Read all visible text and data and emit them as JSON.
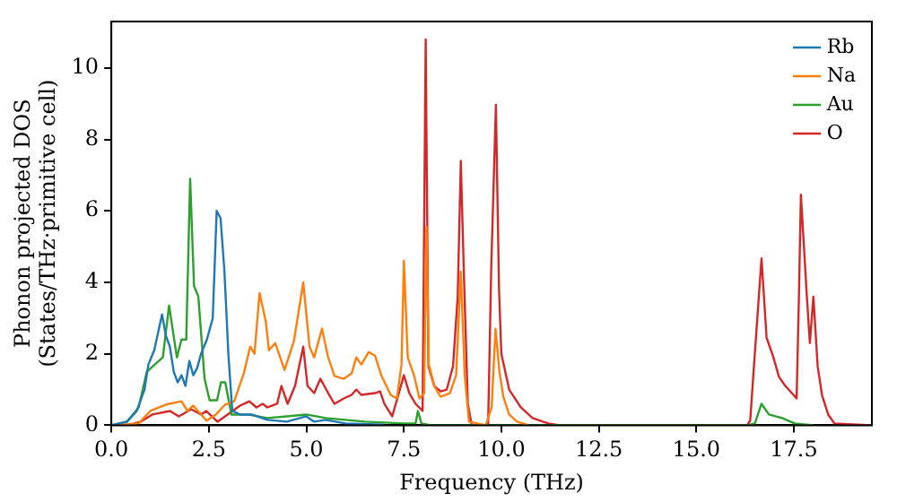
{
  "chart_data": {
    "type": "line",
    "xlabel": "Frequency (THz)",
    "ylabel": "Phonon projected DOS\n(States/THz·primitive cell)",
    "xlim": [
      0,
      19.5
    ],
    "xticks": [
      {
        "value": 0,
        "label": "0.0"
      },
      {
        "value": 2.5,
        "label": "2.5"
      },
      {
        "value": 5,
        "label": "5.0"
      },
      {
        "value": 7.5,
        "label": "7.5"
      },
      {
        "value": 10,
        "label": "10.0"
      },
      {
        "value": 12.5,
        "label": "12.5"
      },
      {
        "value": 15,
        "label": "15.0"
      },
      {
        "value": 17.5,
        "label": "17.5"
      }
    ],
    "ylim": [
      0,
      11.3
    ],
    "yticks": [
      0,
      2,
      4,
      6,
      8,
      10
    ],
    "grid": false,
    "legend": "top right",
    "marker": "none",
    "line_style": "solid",
    "series": [
      {
        "name": "Rb",
        "color": "#1f77b4",
        "x": [
          0,
          0.4,
          0.65,
          0.85,
          0.95,
          1.1,
          1.2,
          1.3,
          1.4,
          1.5,
          1.6,
          1.7,
          1.8,
          1.9,
          2.0,
          2.1,
          2.2,
          2.3,
          2.45,
          2.6,
          2.7,
          2.8,
          2.9,
          3.0,
          3.1,
          3.3,
          3.6,
          4.0,
          4.5,
          5.0,
          5.2,
          5.5,
          6.0,
          7.0
        ],
        "values": [
          0,
          0.1,
          0.4,
          1.0,
          1.7,
          2.1,
          2.6,
          3.1,
          2.5,
          2.2,
          1.5,
          1.2,
          1.4,
          1.1,
          1.8,
          1.4,
          1.6,
          2.0,
          2.4,
          3.0,
          6.0,
          5.8,
          4.3,
          2.0,
          0.4,
          0.3,
          0.3,
          0.15,
          0.1,
          0.25,
          0.1,
          0.15,
          0.05,
          0.02
        ]
      },
      {
        "name": "Na",
        "color": "#ff7f0e",
        "x": [
          0,
          0.7,
          1.0,
          1.4,
          1.8,
          1.95,
          2.1,
          2.44,
          2.68,
          2.92,
          3.15,
          3.4,
          3.56,
          3.67,
          3.8,
          3.96,
          4.04,
          4.2,
          4.44,
          4.68,
          4.92,
          5.08,
          5.2,
          5.4,
          5.56,
          5.72,
          5.96,
          6.16,
          6.28,
          6.41,
          6.6,
          6.76,
          6.92,
          7.16,
          7.32,
          7.44,
          7.5,
          7.6,
          7.76,
          7.9,
          8.02,
          8.08,
          8.14,
          8.28,
          8.44,
          8.68,
          8.84,
          8.96,
          9.06,
          9.17,
          9.6,
          9.75,
          9.85,
          9.95,
          10.05,
          10.2,
          10.4,
          10.7
        ],
        "values": [
          0,
          0.05,
          0.4,
          0.58,
          0.67,
          0.4,
          0.55,
          0.13,
          0.3,
          0.58,
          0.67,
          1.47,
          2.2,
          2.0,
          3.7,
          2.9,
          2.1,
          2.3,
          1.55,
          2.35,
          4.0,
          2.2,
          1.9,
          2.7,
          1.9,
          1.38,
          1.3,
          1.45,
          1.9,
          1.7,
          2.05,
          1.95,
          1.4,
          0.85,
          0.75,
          1.7,
          4.6,
          1.9,
          1.4,
          0.75,
          0.9,
          5.55,
          1.7,
          1.1,
          0.8,
          0.9,
          1.4,
          4.3,
          1.4,
          0.1,
          0,
          0.5,
          2.7,
          1.5,
          0.8,
          0.3,
          0.1,
          0
        ]
      },
      {
        "name": "Au",
        "color": "#2ca02c",
        "x": [
          0,
          0.4,
          0.7,
          0.91,
          1.32,
          1.48,
          1.68,
          1.8,
          1.92,
          2.02,
          2.12,
          2.23,
          2.39,
          2.52,
          2.71,
          2.81,
          2.92,
          3.08,
          3.5,
          4.0,
          5.0,
          5.5,
          6.5,
          7.5,
          7.8,
          7.86,
          7.95,
          8.2,
          16.3,
          16.5,
          16.67,
          16.86,
          17.2,
          17.52,
          18.0
        ],
        "values": [
          0,
          0.1,
          0.5,
          1.5,
          1.9,
          3.35,
          1.9,
          2.4,
          2.4,
          6.9,
          3.9,
          3.6,
          1.3,
          0.7,
          0.7,
          1.2,
          1.2,
          0.3,
          0.3,
          0.2,
          0.3,
          0.2,
          0.1,
          0.05,
          0.05,
          0.4,
          0.05,
          0,
          0,
          0.05,
          0.6,
          0.3,
          0.2,
          0.05,
          0
        ]
      },
      {
        "name": "O",
        "color": "#d62728",
        "x": [
          0,
          0.5,
          0.75,
          1.05,
          1.5,
          1.73,
          2.05,
          2.3,
          2.43,
          2.72,
          2.98,
          3.3,
          3.54,
          3.72,
          3.88,
          4.0,
          4.25,
          4.36,
          4.52,
          4.71,
          4.92,
          5.03,
          5.2,
          5.36,
          5.56,
          5.72,
          5.96,
          6.16,
          6.28,
          6.41,
          6.76,
          6.89,
          7.0,
          7.2,
          7.36,
          7.5,
          7.64,
          7.8,
          7.98,
          8.06,
          8.13,
          8.28,
          8.44,
          8.6,
          8.76,
          8.88,
          8.96,
          9.04,
          9.14,
          9.24,
          9.66,
          9.74,
          9.86,
          9.94,
          10.0,
          10.2,
          10.5,
          10.8,
          11.2,
          11.5,
          16.3,
          16.38,
          16.46,
          16.67,
          16.8,
          16.96,
          17.12,
          17.28,
          17.49,
          17.57,
          17.63,
          17.68,
          17.83,
          17.91,
          18.0,
          18.11,
          18.22,
          18.38,
          18.54,
          19.5
        ],
        "values": [
          0,
          0.02,
          0.1,
          0.3,
          0.4,
          0.25,
          0.45,
          0.3,
          0.4,
          0.1,
          0.3,
          0.55,
          0.67,
          0.5,
          0.6,
          0.5,
          0.6,
          1.1,
          0.6,
          1.1,
          2.2,
          1.1,
          0.9,
          1.3,
          0.9,
          0.6,
          0.75,
          0.85,
          1.0,
          0.85,
          0.9,
          0.95,
          0.6,
          0.25,
          0.85,
          1.4,
          0.9,
          0.6,
          0.4,
          10.8,
          1.65,
          1.1,
          0.95,
          1.0,
          1.65,
          3.6,
          7.4,
          4.2,
          0.6,
          0,
          0,
          4.4,
          8.97,
          3.8,
          2.0,
          1.0,
          0.5,
          0.2,
          0.05,
          0,
          0,
          0.13,
          1.4,
          4.67,
          2.45,
          1.95,
          1.35,
          1.1,
          0.85,
          0.75,
          3.65,
          6.45,
          3.65,
          2.3,
          3.6,
          1.65,
          0.85,
          0.3,
          0.05,
          0
        ]
      }
    ]
  }
}
